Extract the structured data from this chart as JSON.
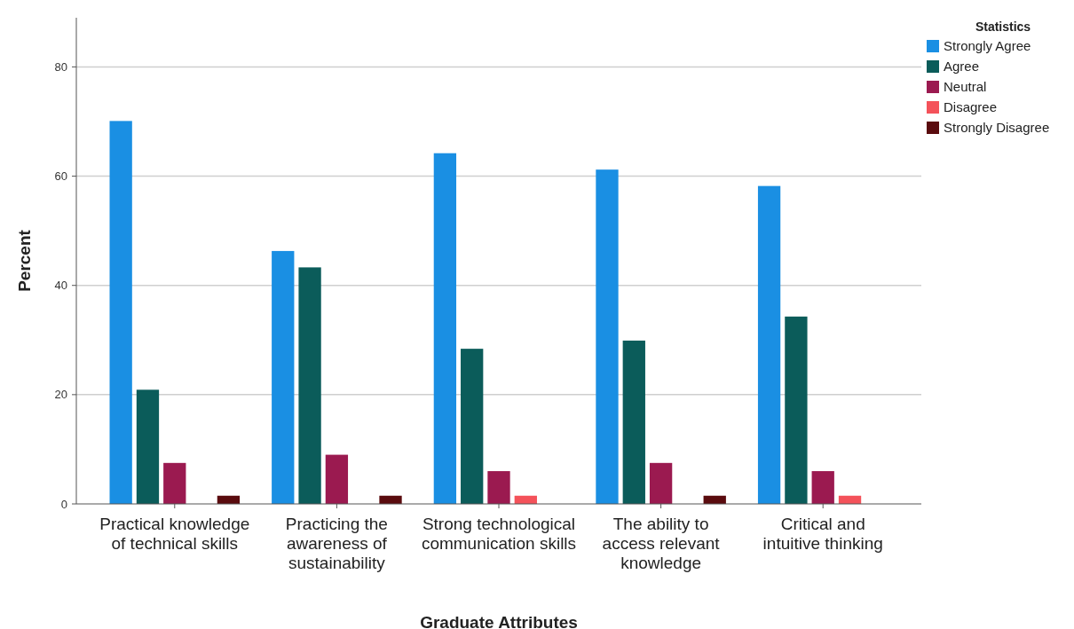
{
  "chart_data": {
    "type": "bar",
    "xlabel": "Graduate Attributes",
    "ylabel": "Percent",
    "legend_title": "Statistics",
    "legend": "top right",
    "grid": "y",
    "categories": [
      "Practical knowledge of technical skills",
      "Practicing the awareness of sustainability",
      "Strong technological communication skills",
      "The ability to access relevant knowledge",
      "Critical and intuitive thinking"
    ],
    "ylim": [
      0,
      89
    ],
    "yticks": [
      0,
      20,
      40,
      60,
      80
    ],
    "series": [
      {
        "name": "Strongly Agree",
        "color": "#1a8fe3",
        "values": [
          70.1,
          46.3,
          64.2,
          61.2,
          58.2
        ]
      },
      {
        "name": "Agree",
        "color": "#0b5c5a",
        "values": [
          20.9,
          43.3,
          28.4,
          29.9,
          34.3
        ]
      },
      {
        "name": "Neutral",
        "color": "#9b1a50",
        "values": [
          7.5,
          9.0,
          6.0,
          7.5,
          6.0
        ]
      },
      {
        "name": "Disagree",
        "color": "#f4525a",
        "values": [
          null,
          null,
          1.5,
          null,
          1.5
        ]
      },
      {
        "name": "Strongly Disagree",
        "color": "#5a0b0e",
        "values": [
          1.5,
          1.5,
          null,
          1.5,
          null
        ]
      }
    ]
  }
}
